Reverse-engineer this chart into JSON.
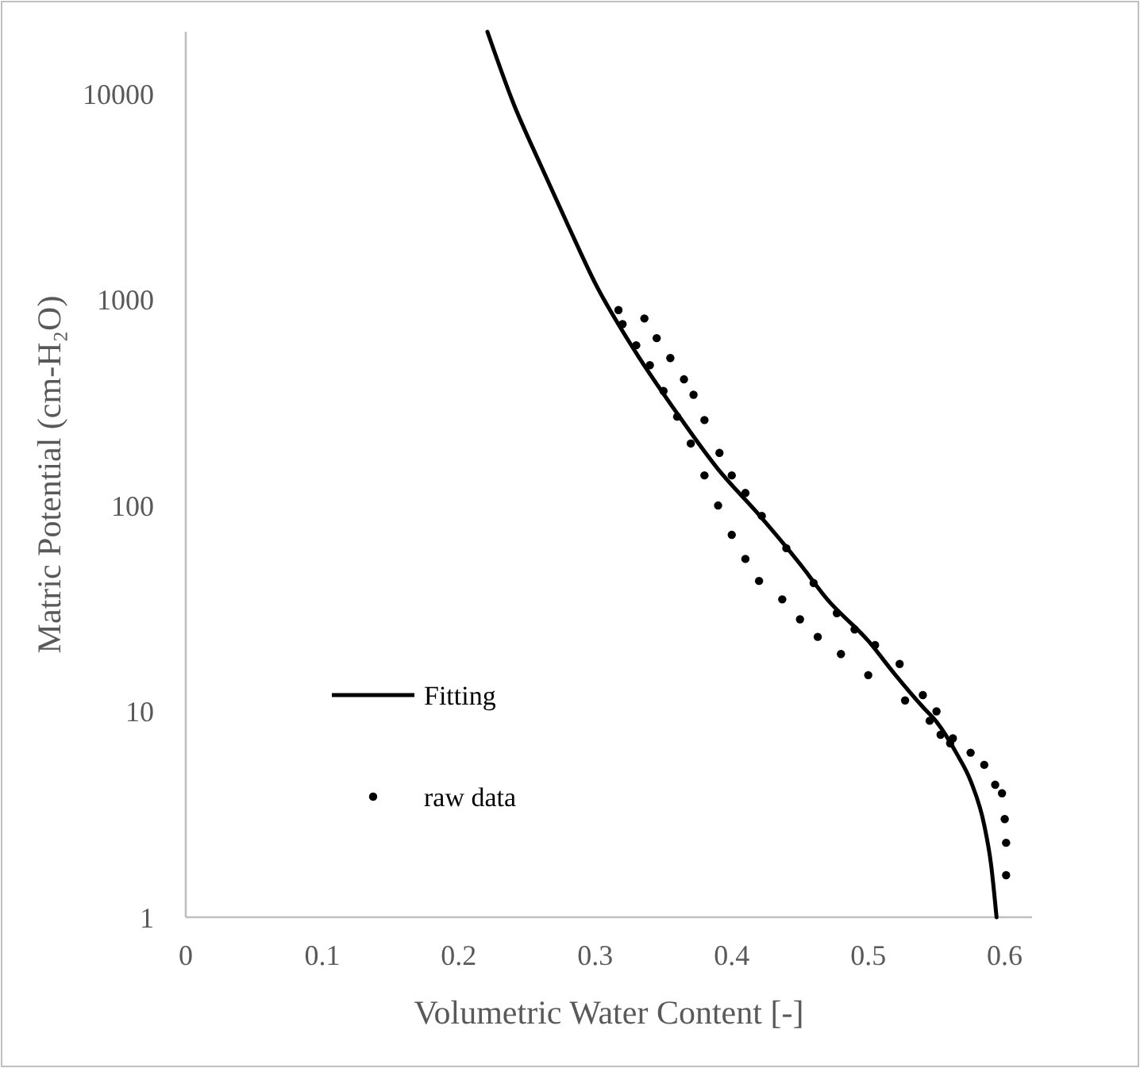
{
  "chart_data": {
    "type": "scatter",
    "xlabel": "Volumetric Water Content [-]",
    "ylabel": "Matric Potential (cm-H₂O)",
    "log": "y",
    "grid": false,
    "legend": "bottom left",
    "xlim": [
      0,
      0.62
    ],
    "xticks": [
      0,
      0.1,
      0.2,
      0.3,
      0.4,
      0.5,
      0.6
    ],
    "ylim": [
      1,
      20000
    ],
    "yticks": [
      1,
      10,
      100,
      1000,
      10000
    ],
    "series": [
      {
        "name": "Fitting",
        "type": "line",
        "color": "#000000",
        "marker": "none",
        "line_style": "solid",
        "x": [
          0.221,
          0.24,
          0.26,
          0.28,
          0.3,
          0.33,
          0.36,
          0.39,
          0.42,
          0.45,
          0.47,
          0.5,
          0.52,
          0.54,
          0.55,
          0.565,
          0.575,
          0.585,
          0.59,
          0.594
        ],
        "values": [
          20000,
          9000,
          4500,
          2300,
          1200,
          550,
          280,
          150,
          90,
          52,
          35,
          22,
          15,
          10.5,
          8.9,
          6.2,
          4.6,
          2.8,
          1.8,
          1
        ]
      },
      {
        "name": "raw data",
        "color": "#000000",
        "marker": "circle",
        "x": [
          0.317,
          0.32,
          0.33,
          0.34,
          0.35,
          0.36,
          0.37,
          0.38,
          0.39,
          0.4,
          0.41,
          0.42,
          0.437,
          0.45,
          0.463,
          0.48,
          0.5,
          0.527,
          0.545,
          0.553,
          0.56,
          0.336,
          0.345,
          0.355,
          0.365,
          0.372,
          0.38,
          0.391,
          0.4,
          0.41,
          0.422,
          0.44,
          0.46,
          0.477,
          0.49,
          0.505,
          0.523,
          0.54,
          0.55,
          0.562,
          0.575,
          0.585,
          0.593,
          0.598,
          0.6,
          0.601,
          0.601
        ],
        "values": [
          890,
          760,
          600,
          480,
          360,
          270,
          200,
          140,
          100,
          72,
          55,
          43,
          35,
          28,
          23,
          19,
          15,
          11.3,
          9,
          7.7,
          7,
          810,
          650,
          520,
          410,
          345,
          260,
          180,
          140,
          115,
          89,
          62,
          42,
          30,
          25,
          21,
          17,
          12,
          10,
          7.4,
          6.3,
          5.5,
          4.4,
          4,
          3,
          2.3,
          1.6
        ]
      }
    ]
  }
}
